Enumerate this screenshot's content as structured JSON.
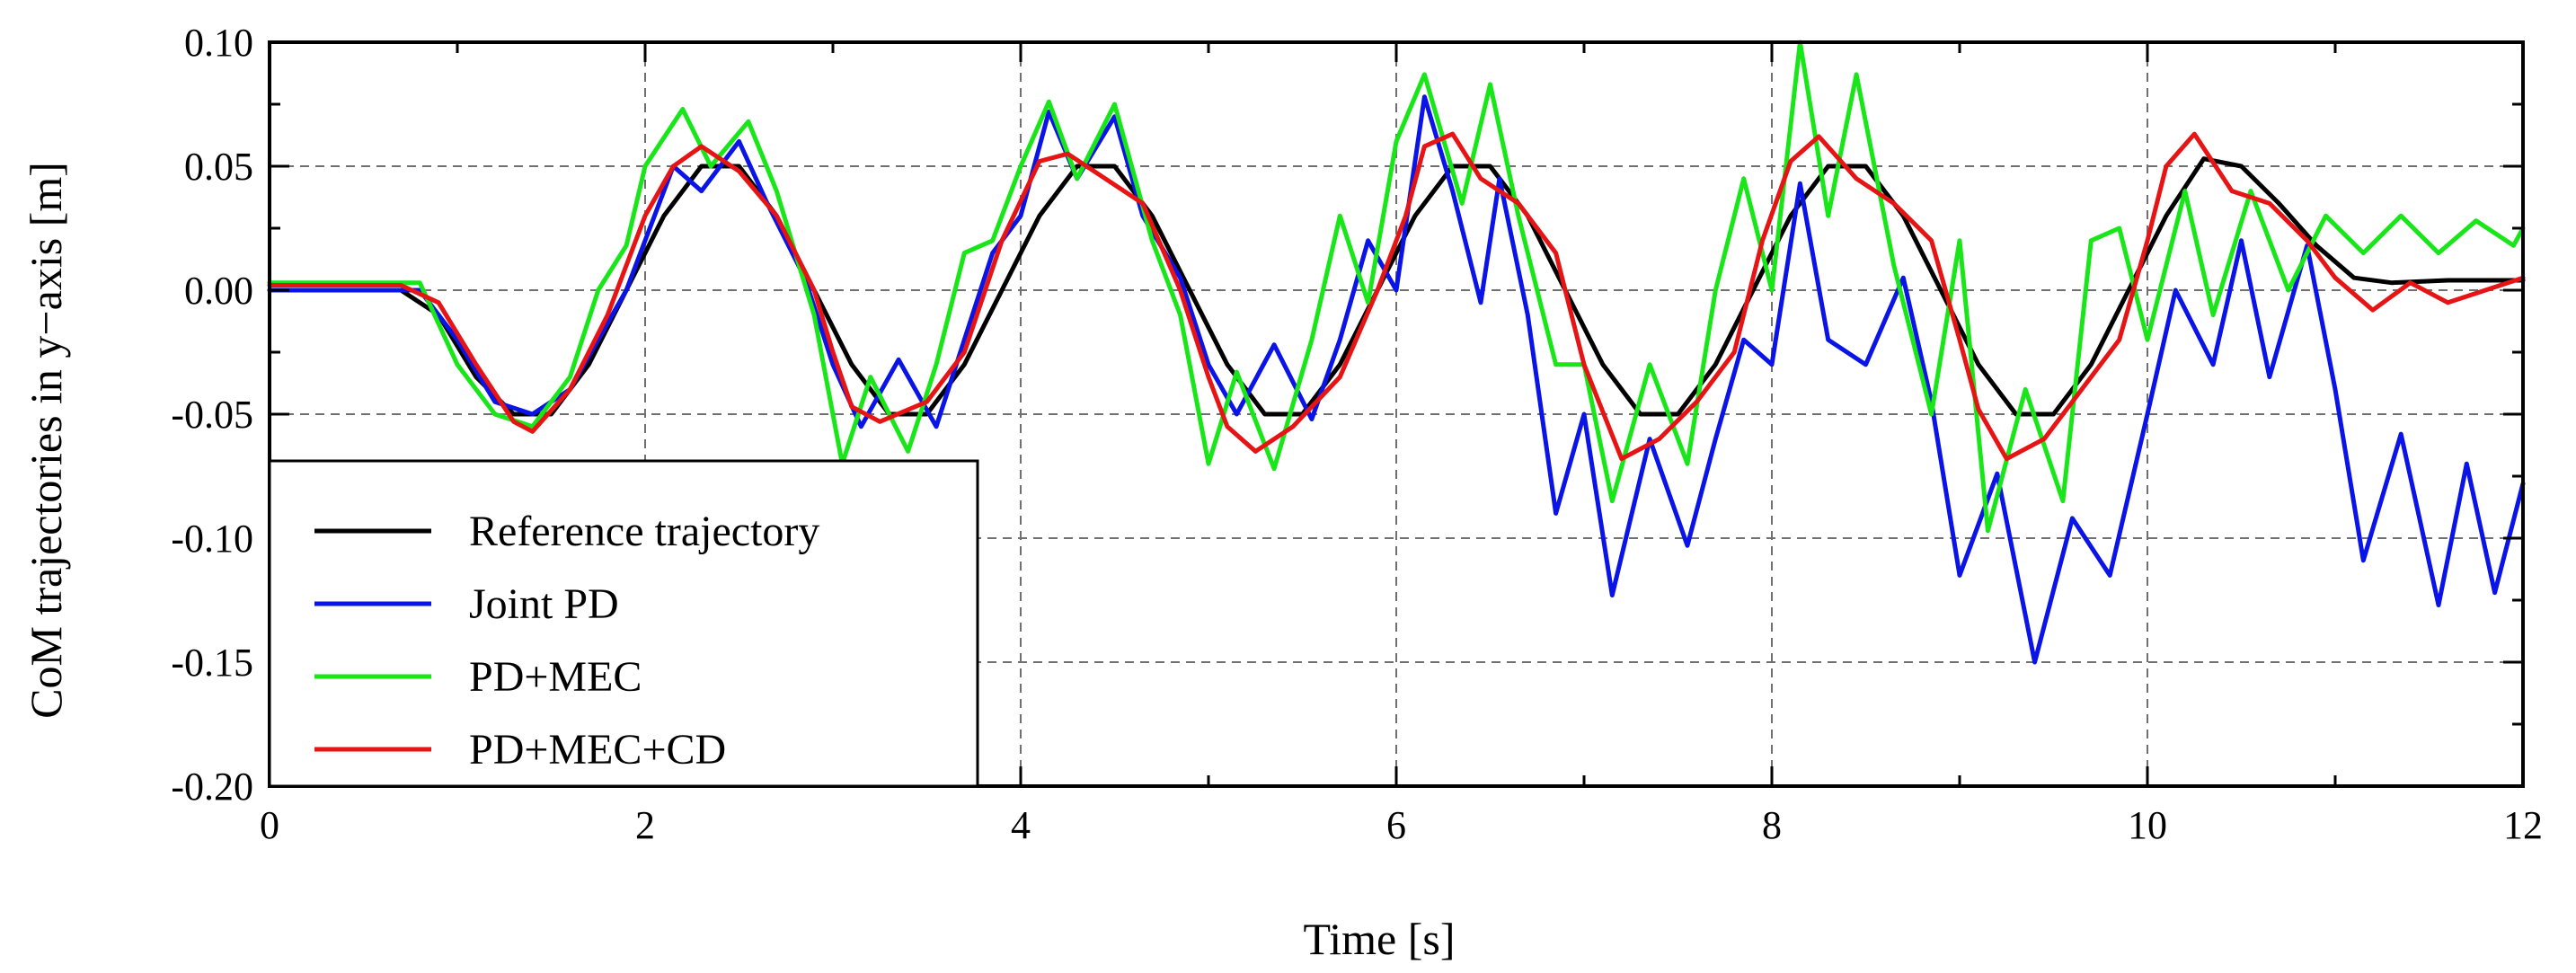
{
  "chart_data": {
    "type": "line",
    "title": "",
    "xlabel": "Time [s]",
    "ylabel": "CoM trajectories in y−axis [m]",
    "xlim": [
      0,
      12
    ],
    "ylim": [
      -0.2,
      0.1
    ],
    "xticks": [
      0,
      2,
      4,
      6,
      8,
      10,
      12
    ],
    "yticks": [
      -0.2,
      -0.15,
      -0.1,
      -0.05,
      0.0,
      0.05,
      0.1
    ],
    "xtick_labels": [
      "0",
      "2",
      "4",
      "6",
      "8",
      "10",
      "12"
    ],
    "ytick_labels": [
      "-0.20",
      "-0.15",
      "-0.10",
      "-0.05",
      "0.00",
      "0.05",
      "0.10"
    ],
    "grid": true,
    "legend_position": "bottom-left",
    "series": [
      {
        "name": "Reference trajectory",
        "color": "#000000",
        "x": [
          0,
          0.7,
          0.9,
          1.1,
          1.3,
          1.5,
          1.7,
          1.9,
          2.1,
          2.3,
          2.5,
          2.7,
          2.9,
          3.1,
          3.3,
          3.5,
          3.7,
          3.9,
          4.1,
          4.3,
          4.5,
          4.7,
          4.9,
          5.1,
          5.3,
          5.5,
          5.7,
          5.9,
          6.1,
          6.3,
          6.5,
          6.7,
          6.9,
          7.1,
          7.3,
          7.5,
          7.7,
          7.9,
          8.1,
          8.3,
          8.5,
          8.7,
          8.9,
          9.1,
          9.3,
          9.5,
          9.7,
          9.9,
          10.1,
          10.3,
          10.5,
          10.7,
          10.9,
          11.1,
          11.3,
          11.6,
          12
        ],
        "y": [
          0.0,
          0.0,
          -0.01,
          -0.035,
          -0.05,
          -0.05,
          -0.03,
          0.0,
          0.03,
          0.05,
          0.05,
          0.03,
          0.0,
          -0.03,
          -0.05,
          -0.05,
          -0.03,
          0.0,
          0.03,
          0.05,
          0.05,
          0.03,
          0.0,
          -0.03,
          -0.05,
          -0.05,
          -0.03,
          0.0,
          0.03,
          0.05,
          0.05,
          0.03,
          0.0,
          -0.03,
          -0.05,
          -0.05,
          -0.03,
          0.0,
          0.03,
          0.05,
          0.05,
          0.03,
          0.0,
          -0.03,
          -0.05,
          -0.05,
          -0.03,
          0.0,
          0.03,
          0.053,
          0.05,
          0.035,
          0.018,
          0.005,
          0.003,
          0.004,
          0.004
        ]
      },
      {
        "name": "Joint PD",
        "color": "#0a14e6",
        "x": [
          0,
          0.8,
          1.0,
          1.2,
          1.4,
          1.6,
          1.75,
          1.9,
          2.0,
          2.15,
          2.3,
          2.5,
          2.65,
          2.85,
          3.0,
          3.15,
          3.35,
          3.55,
          3.7,
          3.85,
          4.0,
          4.15,
          4.3,
          4.5,
          4.65,
          4.85,
          5.0,
          5.15,
          5.35,
          5.55,
          5.7,
          5.85,
          6.0,
          6.15,
          6.3,
          6.45,
          6.55,
          6.7,
          6.85,
          7.0,
          7.15,
          7.35,
          7.55,
          7.7,
          7.85,
          8.0,
          8.15,
          8.3,
          8.5,
          8.7,
          8.85,
          9.0,
          9.2,
          9.4,
          9.6,
          9.8,
          10.0,
          10.15,
          10.35,
          10.5,
          10.65,
          10.85,
          11.0,
          11.15,
          11.35,
          11.55,
          11.7,
          11.85,
          12.0
        ],
        "y": [
          0.0,
          0.0,
          -0.02,
          -0.045,
          -0.05,
          -0.04,
          -0.02,
          0.0,
          0.02,
          0.05,
          0.04,
          0.06,
          0.035,
          0.005,
          -0.03,
          -0.055,
          -0.028,
          -0.055,
          -0.02,
          0.015,
          0.03,
          0.072,
          0.045,
          0.07,
          0.03,
          0.005,
          -0.03,
          -0.05,
          -0.022,
          -0.052,
          -0.02,
          0.02,
          0.0,
          0.078,
          0.04,
          -0.005,
          0.045,
          -0.01,
          -0.09,
          -0.05,
          -0.123,
          -0.06,
          -0.103,
          -0.06,
          -0.02,
          -0.03,
          0.043,
          -0.02,
          -0.03,
          0.005,
          -0.045,
          -0.115,
          -0.074,
          -0.15,
          -0.092,
          -0.115,
          -0.05,
          0.0,
          -0.03,
          0.02,
          -0.035,
          0.018,
          -0.04,
          -0.109,
          -0.058,
          -0.127,
          -0.07,
          -0.122,
          -0.078
        ]
      },
      {
        "name": "PD+MEC",
        "color": "#19e619",
        "x": [
          0,
          0.8,
          1.0,
          1.2,
          1.4,
          1.6,
          1.75,
          1.9,
          2.0,
          2.2,
          2.35,
          2.55,
          2.7,
          2.9,
          3.05,
          3.2,
          3.4,
          3.55,
          3.7,
          3.85,
          4.0,
          4.15,
          4.3,
          4.5,
          4.7,
          4.85,
          5.0,
          5.15,
          5.35,
          5.55,
          5.7,
          5.85,
          6.0,
          6.15,
          6.35,
          6.5,
          6.65,
          6.85,
          7.0,
          7.15,
          7.35,
          7.55,
          7.7,
          7.85,
          8.0,
          8.15,
          8.3,
          8.45,
          8.65,
          8.85,
          9.0,
          9.15,
          9.35,
          9.55,
          9.7,
          9.85,
          10.0,
          10.2,
          10.35,
          10.55,
          10.75,
          10.95,
          11.15,
          11.35,
          11.55,
          11.75,
          11.95,
          12.0
        ],
        "y": [
          0.003,
          0.003,
          -0.03,
          -0.05,
          -0.055,
          -0.035,
          0.0,
          0.018,
          0.05,
          0.073,
          0.05,
          0.068,
          0.04,
          -0.01,
          -0.07,
          -0.035,
          -0.065,
          -0.03,
          0.015,
          0.02,
          0.05,
          0.076,
          0.045,
          0.075,
          0.02,
          -0.01,
          -0.07,
          -0.033,
          -0.072,
          -0.02,
          0.03,
          -0.005,
          0.06,
          0.087,
          0.035,
          0.083,
          0.03,
          -0.03,
          -0.03,
          -0.085,
          -0.03,
          -0.07,
          0.0,
          0.045,
          0.0,
          0.1,
          0.03,
          0.087,
          0.01,
          -0.05,
          0.02,
          -0.097,
          -0.04,
          -0.085,
          0.02,
          0.025,
          -0.02,
          0.04,
          -0.01,
          0.04,
          0.0,
          0.03,
          0.015,
          0.03,
          0.015,
          0.028,
          0.018,
          0.025
        ]
      },
      {
        "name": "PD+MEC+CD",
        "color": "#e61414",
        "x": [
          0,
          0.7,
          0.9,
          1.1,
          1.3,
          1.4,
          1.6,
          1.8,
          2.0,
          2.15,
          2.3,
          2.5,
          2.7,
          2.9,
          3.0,
          3.1,
          3.25,
          3.5,
          3.7,
          3.9,
          4.1,
          4.25,
          4.45,
          4.65,
          4.85,
          5.0,
          5.1,
          5.25,
          5.45,
          5.7,
          5.9,
          6.05,
          6.15,
          6.3,
          6.45,
          6.65,
          6.85,
          7.0,
          7.2,
          7.4,
          7.6,
          7.8,
          7.95,
          8.1,
          8.25,
          8.45,
          8.65,
          8.85,
          9.0,
          9.1,
          9.25,
          9.45,
          9.65,
          9.85,
          10.0,
          10.1,
          10.25,
          10.45,
          10.65,
          10.85,
          11.0,
          11.2,
          11.4,
          11.6,
          11.8,
          12.0
        ],
        "y": [
          0.002,
          0.002,
          -0.005,
          -0.03,
          -0.053,
          -0.057,
          -0.04,
          -0.01,
          0.03,
          0.05,
          0.058,
          0.048,
          0.03,
          0.0,
          -0.025,
          -0.047,
          -0.053,
          -0.045,
          -0.025,
          0.02,
          0.052,
          0.055,
          0.045,
          0.035,
          0.0,
          -0.035,
          -0.055,
          -0.065,
          -0.055,
          -0.035,
          0.0,
          0.03,
          0.058,
          0.063,
          0.045,
          0.035,
          0.015,
          -0.03,
          -0.068,
          -0.06,
          -0.045,
          -0.025,
          0.02,
          0.052,
          0.062,
          0.045,
          0.035,
          0.02,
          -0.02,
          -0.048,
          -0.068,
          -0.06,
          -0.04,
          -0.02,
          0.02,
          0.05,
          0.063,
          0.04,
          0.035,
          0.02,
          0.005,
          -0.008,
          0.003,
          -0.005,
          0.0,
          0.005
        ]
      }
    ]
  }
}
